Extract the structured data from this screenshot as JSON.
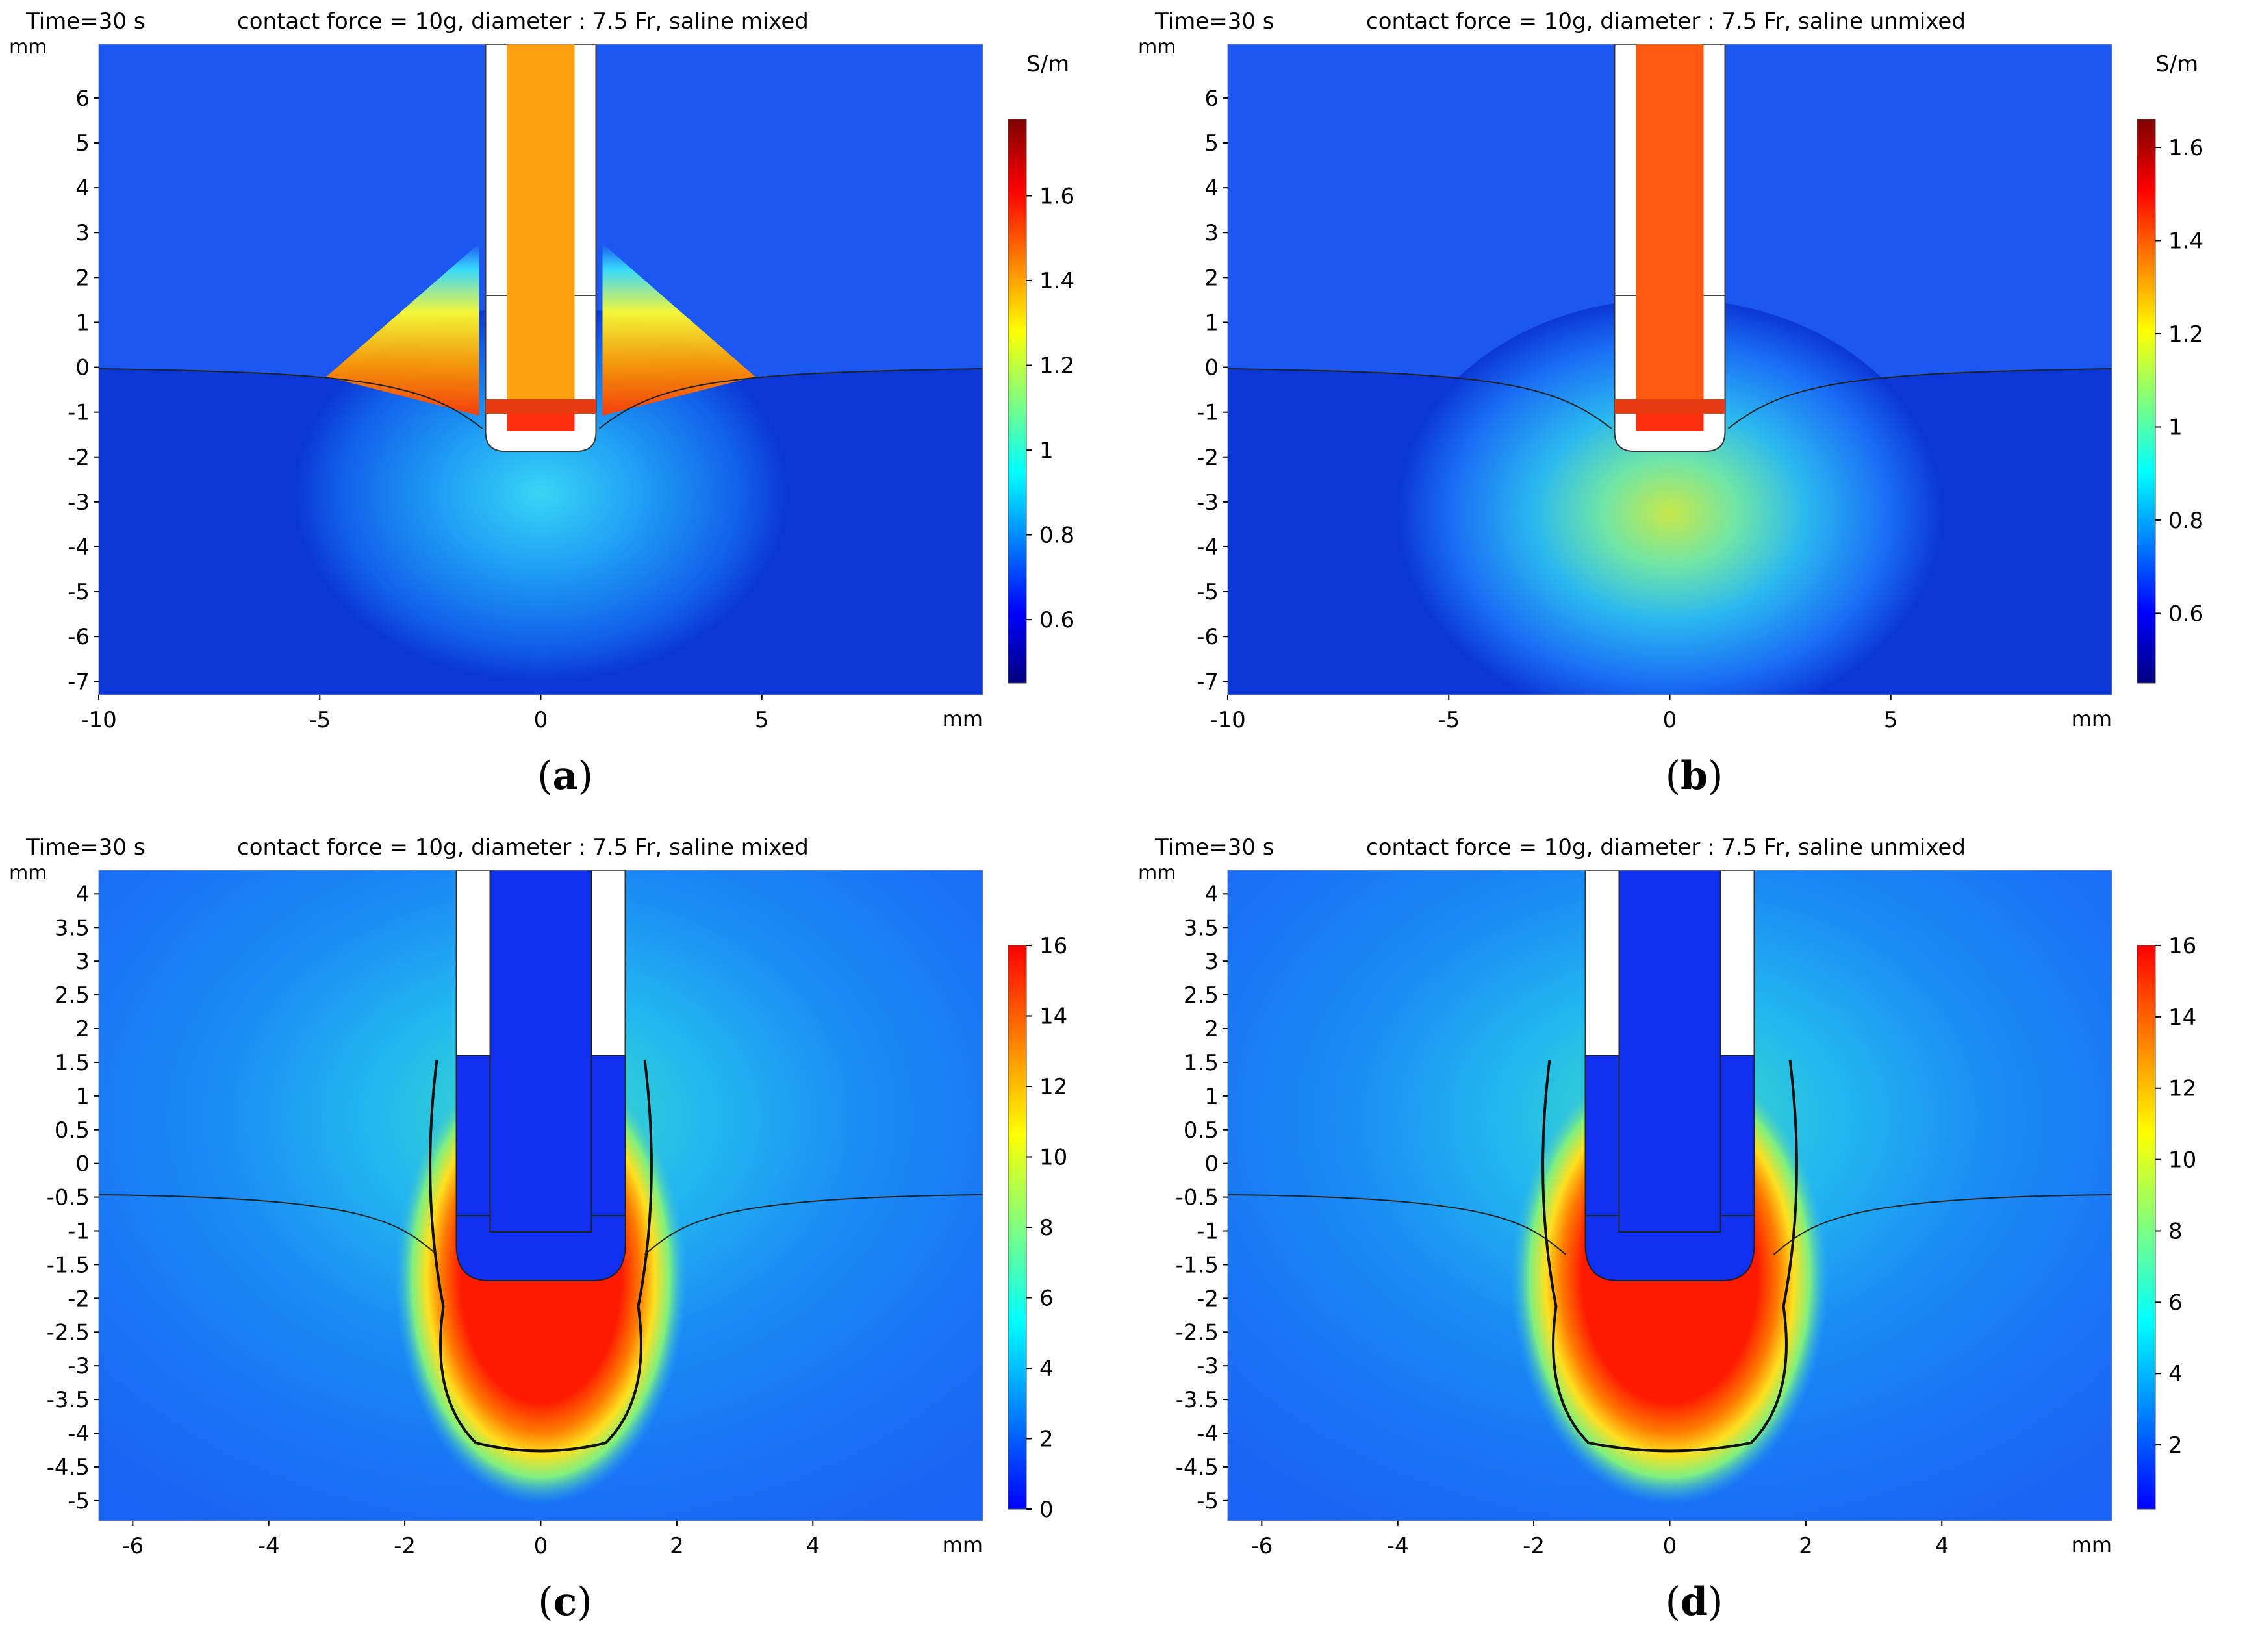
{
  "colormap": [
    "#00007f",
    "#0000ff",
    "#007fff",
    "#00ffff",
    "#7fff7f",
    "#ffff00",
    "#ff7f00",
    "#ff0000",
    "#7f0000"
  ],
  "panels": [
    {
      "id": "a",
      "time_label": "Time=30 s",
      "title": "contact force = 10g, diameter : 7.5 Fr, saline mixed",
      "y_unit": "mm",
      "x_unit": "mm",
      "colorbar_unit": "S/m",
      "x_ticks": [
        "-10",
        "-5",
        "0",
        "5"
      ],
      "y_ticks": [
        "6",
        "5",
        "4",
        "3",
        "2",
        "1",
        "0",
        "-1",
        "-2",
        "-3",
        "-4",
        "-5",
        "-6",
        "-7"
      ],
      "colorbar_ticks": [
        "1.6",
        "1.4",
        "1.2",
        "1",
        "0.8",
        "0.6"
      ],
      "caption": "a"
    },
    {
      "id": "b",
      "time_label": "Time=30 s",
      "title": "contact force = 10g, diameter : 7.5 Fr, saline unmixed",
      "y_unit": "mm",
      "x_unit": "mm",
      "colorbar_unit": "S/m",
      "x_ticks": [
        "-10",
        "-5",
        "0",
        "5"
      ],
      "y_ticks": [
        "6",
        "5",
        "4",
        "3",
        "2",
        "1",
        "0",
        "-1",
        "-2",
        "-3",
        "-4",
        "-5",
        "-6",
        "-7"
      ],
      "colorbar_ticks": [
        "1.6",
        "1.4",
        "1.2",
        "1",
        "0.8",
        "0.6"
      ],
      "caption": "b"
    },
    {
      "id": "c",
      "time_label": "Time=30 s",
      "title": "contact force = 10g, diameter : 7.5 Fr, saline mixed",
      "y_unit": "mm",
      "x_unit": "mm",
      "colorbar_unit": "",
      "x_ticks": [
        "-6",
        "-4",
        "-2",
        "0",
        "2",
        "4"
      ],
      "y_ticks": [
        "4",
        "3.5",
        "3",
        "2.5",
        "2",
        "1.5",
        "1",
        "0.5",
        "0",
        "-0.5",
        "-1",
        "-1.5",
        "-2",
        "-2.5",
        "-3",
        "-3.5",
        "-4",
        "-4.5",
        "-5"
      ],
      "colorbar_ticks": [
        "16",
        "14",
        "12",
        "10",
        "8",
        "6",
        "4",
        "2",
        "0"
      ],
      "caption": "c"
    },
    {
      "id": "d",
      "time_label": "Time=30 s",
      "title": "contact force = 10g, diameter : 7.5 Fr, saline unmixed",
      "y_unit": "mm",
      "x_unit": "mm",
      "colorbar_unit": "",
      "x_ticks": [
        "-6",
        "-4",
        "-2",
        "0",
        "2",
        "4"
      ],
      "y_ticks": [
        "4",
        "3.5",
        "3",
        "2.5",
        "2",
        "1.5",
        "1",
        "0.5",
        "0",
        "-0.5",
        "-1",
        "-1.5",
        "-2",
        "-2.5",
        "-3",
        "-3.5",
        "-4",
        "-4.5",
        "-5"
      ],
      "colorbar_ticks": [
        "16",
        "14",
        "12",
        "10",
        "8",
        "6",
        "4",
        "2"
      ],
      "caption": "d"
    }
  ]
}
